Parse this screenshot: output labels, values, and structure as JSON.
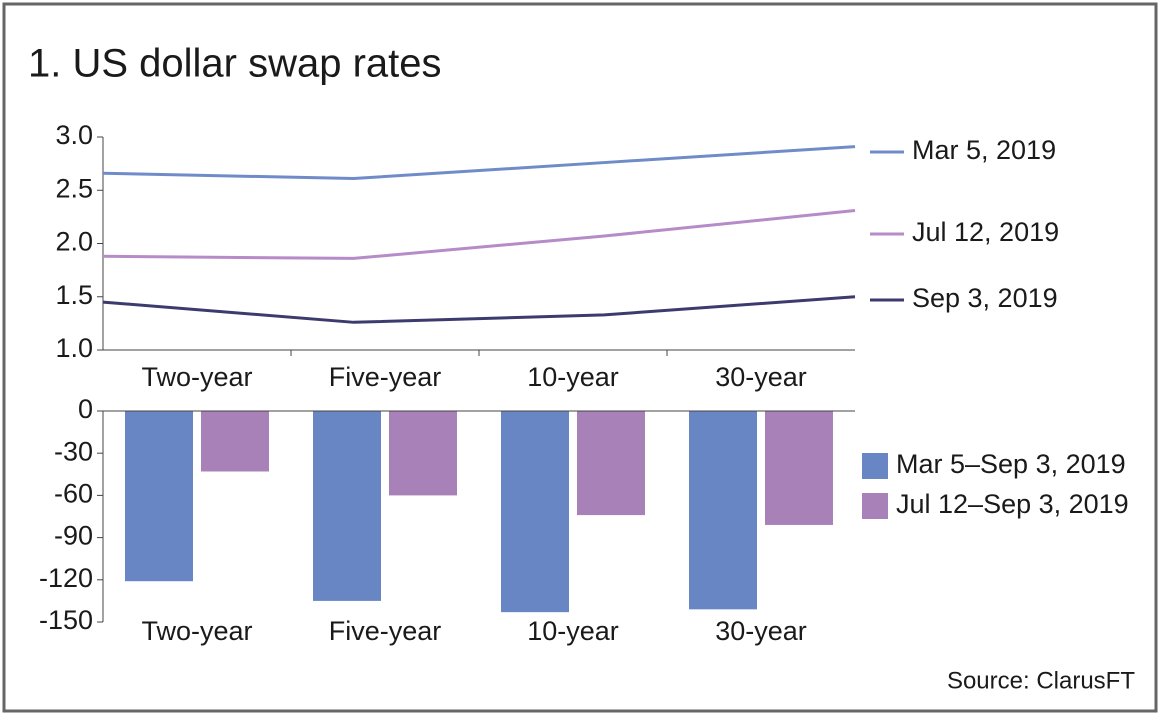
{
  "chart_data": [
    {
      "type": "line",
      "title": "1. US dollar swap rates",
      "categories": [
        "Two-year",
        "Five-year",
        "10-year",
        "30-year"
      ],
      "series": [
        {
          "name": "Mar 5, 2019",
          "color": "#6f8cc9",
          "values": [
            2.66,
            2.61,
            2.76,
            2.91
          ]
        },
        {
          "name": "Jul 12, 2019",
          "color": "#b68bc7",
          "values": [
            1.88,
            1.86,
            2.07,
            2.31
          ]
        },
        {
          "name": "Sep 3, 2019",
          "color": "#3d3a6e",
          "values": [
            1.45,
            1.26,
            1.33,
            1.5
          ]
        }
      ],
      "ylim": [
        1,
        3
      ],
      "yticks": [
        {
          "value": 1,
          "label": "1.0"
        },
        1.5,
        {
          "value": 2,
          "label": "2.0"
        },
        2.5,
        {
          "value": 3,
          "label": "3.0"
        }
      ]
    },
    {
      "type": "bar",
      "categories": [
        "Two-year",
        "Five-year",
        "10-year",
        "30-year"
      ],
      "series": [
        {
          "name": "Mar 5–Sep 3, 2019",
          "color": "#6886c4",
          "values": [
            -121,
            -135,
            -143,
            -141
          ]
        },
        {
          "name": "Jul 12–Sep 3, 2019",
          "color": "#a981b9",
          "values": [
            -43,
            -60,
            -74,
            -81
          ]
        }
      ],
      "ylim": [
        -150,
        0
      ],
      "yticks": [
        0,
        -30,
        -60,
        -90,
        -120,
        -150
      ],
      "source": "Source: ClarusFT"
    }
  ]
}
